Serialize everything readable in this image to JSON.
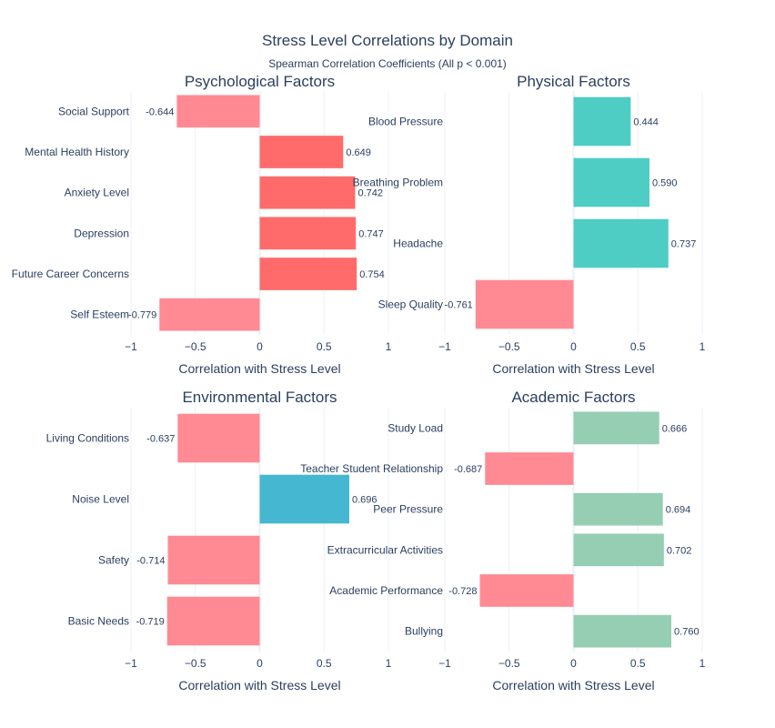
{
  "chart_data": {
    "type": "bar",
    "orientation": "horizontal",
    "title": "Stress Level Correlations by Domain",
    "subtitle": "Spearman Correlation Coefficients (All p < 0.001)",
    "xlim": [
      -1,
      1
    ],
    "xticks": [
      -1,
      -0.5,
      0,
      0.5,
      1
    ],
    "xtick_labels": [
      "−1",
      "−0.5",
      "0",
      "0.5",
      "1"
    ],
    "xlabel": "Correlation with Stress Level",
    "negative_color": "#FF8A94",
    "panels": [
      {
        "title": "Psychological Factors",
        "positive_color": "#FF6B6B",
        "categories": [
          "Social Support",
          "Mental Health History",
          "Anxiety Level",
          "Depression",
          "Future Career Concerns",
          "Self Esteem"
        ],
        "values": [
          -0.644,
          0.649,
          0.742,
          0.747,
          0.754,
          -0.779
        ],
        "labels": [
          "-0.644",
          "0.649",
          "0.742",
          "0.747",
          "0.754",
          "-0.779"
        ]
      },
      {
        "title": "Physical Factors",
        "positive_color": "#4ECDC4",
        "categories": [
          "Blood Pressure",
          "Breathing Problem",
          "Headache",
          "Sleep Quality"
        ],
        "values": [
          0.444,
          0.59,
          0.737,
          -0.761
        ],
        "labels": [
          "0.444",
          "0.590",
          "0.737",
          "-0.761"
        ]
      },
      {
        "title": "Environmental Factors",
        "positive_color": "#45B7D1",
        "categories": [
          "Living Conditions",
          "Noise Level",
          "Safety",
          "Basic Needs"
        ],
        "values": [
          -0.637,
          0.696,
          -0.714,
          -0.719
        ],
        "labels": [
          "-0.637",
          "0.696",
          "-0.714",
          "-0.719"
        ]
      },
      {
        "title": "Academic Factors",
        "positive_color": "#96CEB4",
        "categories": [
          "Study Load",
          "Teacher Student Relationship",
          "Peer Pressure",
          "Extracurricular Activities",
          "Academic Performance",
          "Bullying"
        ],
        "values": [
          0.666,
          -0.687,
          0.694,
          0.702,
          -0.728,
          0.76
        ],
        "labels": [
          "0.666",
          "-0.687",
          "0.694",
          "0.702",
          "-0.728",
          "0.760"
        ]
      }
    ]
  }
}
